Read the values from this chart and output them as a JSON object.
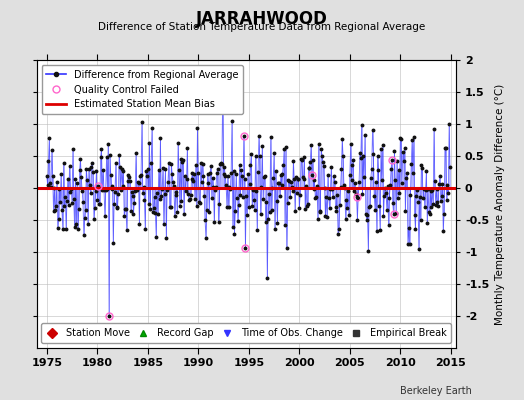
{
  "title": "JARRAHWOOD",
  "subtitle": "Difference of Station Temperature Data from Regional Average",
  "ylabel": "Monthly Temperature Anomaly Difference (°C)",
  "xlabel_years": [
    1975,
    1980,
    1985,
    1990,
    1995,
    2000,
    2005,
    2010,
    2015
  ],
  "xlim": [
    1974.0,
    2015.5
  ],
  "ylim": [
    -2.5,
    2.0
  ],
  "yticks": [
    -2,
    -1.5,
    -1,
    -0.5,
    0,
    0.5,
    1,
    1.5,
    2
  ],
  "mean_bias": 0.0,
  "background_color": "#e0e0e0",
  "plot_bg_color": "#ffffff",
  "line_color": "#3333ff",
  "bias_color": "#dd0000",
  "qc_color": "#ff66cc",
  "watermark": "Berkeley Earth",
  "seed": 42
}
